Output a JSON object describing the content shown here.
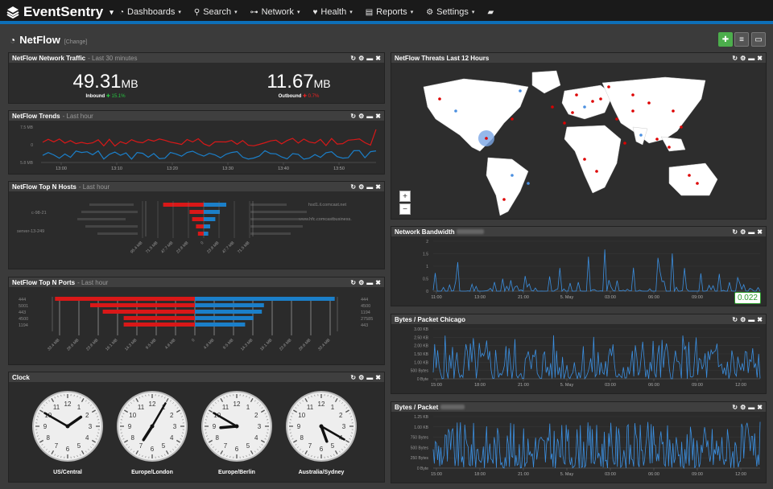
{
  "nav": {
    "brand": "EventSentry",
    "items": [
      {
        "label": "Dashboards",
        "icon": "dashboard-icon"
      },
      {
        "label": "Search",
        "icon": "search-icon"
      },
      {
        "label": "Network",
        "icon": "network-icon"
      },
      {
        "label": "Health",
        "icon": "heartbeat-icon"
      },
      {
        "label": "Reports",
        "icon": "reports-icon"
      },
      {
        "label": "Settings",
        "icon": "settings-icon"
      },
      {
        "label": "",
        "icon": "chat-icon"
      }
    ]
  },
  "page": {
    "title": "NetFlow",
    "change": "[Change]"
  },
  "colors": {
    "inbound": "#d91818",
    "outbound": "#1b7fc9",
    "accent": "#0d6fb8",
    "add": "#4cae4c"
  },
  "traffic": {
    "title": "NetFlow Network Traffic",
    "sub": "- Last 30 minutes",
    "in_value": "49.31",
    "in_unit": "MB",
    "in_label": "Inbound",
    "in_change": "15.1%",
    "out_value": "11.67",
    "out_unit": "MB",
    "out_label": "Outbound",
    "out_change": "0.7%"
  },
  "trends": {
    "title": "NetFlow Trends",
    "sub": "- Last hour",
    "ylabels": [
      "7.5 MB",
      "0",
      "5.8 MB"
    ],
    "xlabels": [
      "13:00",
      "13:10",
      "13:20",
      "13:30",
      "13:40",
      "13:50"
    ]
  },
  "hosts": {
    "title": "NetFlow Top N Hosts",
    "sub": "- Last hour",
    "left": [
      "c-98-21",
      "server-13-249"
    ],
    "right": [
      "hsd1.il.comcast.net",
      "www.hfc.comcastbusiness."
    ],
    "ticks": [
      "95.4 MB",
      "71.5 MB",
      "47.7 MB",
      "23.8 MB",
      "0",
      "23.8 MB",
      "47.7 MB",
      "71.5 MB"
    ],
    "in": [
      63,
      22,
      18,
      12,
      9
    ],
    "out": [
      35,
      25,
      18,
      10,
      7
    ]
  },
  "ports": {
    "title": "NetFlow Top N Ports",
    "sub": "- Last hour",
    "left": [
      "444",
      "5001",
      "443",
      "4500",
      "1194"
    ],
    "right": [
      "444",
      "4500",
      "1194",
      "27585",
      "443"
    ],
    "ticks": [
      "33.4 MB",
      "28.6 MB",
      "23.8 MB",
      "19.1 MB",
      "14.3 MB",
      "9.5 MB",
      "4.8 MB",
      "0",
      "4.8 MB",
      "9.5 MB",
      "14.3 MB",
      "19.1 MB",
      "23.8 MB",
      "28.6 MB",
      "33.4 MB"
    ],
    "in": [
      33.4,
      25,
      22,
      17,
      17
    ],
    "out": [
      33.4,
      16.5,
      16,
      14,
      12
    ]
  },
  "clock": {
    "title": "Clock",
    "clocks": [
      {
        "name": "US/Central",
        "hour": 1,
        "minute": 50
      },
      {
        "name": "Europe/London",
        "hour": 7,
        "minute": 5
      },
      {
        "name": "Europe/Berlin",
        "hour": 8,
        "minute": 50
      },
      {
        "name": "Australia/Sydney",
        "hour": 5,
        "minute": 20
      }
    ]
  },
  "threats": {
    "title": "NetFlow Threats Last 12 Hours",
    "zoom_in": "+",
    "zoom_out": "−"
  },
  "bandwidth": {
    "title": "Network Bandwidth",
    "ylabels": [
      "2",
      "1.5",
      "1",
      "0.5",
      "0"
    ],
    "xlabels": [
      "11:00",
      "13:00",
      "21:00",
      "5. May",
      "03:00",
      "06:00",
      "09:00",
      "12:00"
    ],
    "current": "0.022"
  },
  "bpp1": {
    "title": "Bytes / Packet Chicago",
    "ylabels": [
      "3.00 KB",
      "2.50 KB",
      "2.00 KB",
      "1.50 KB",
      "1.00 KB",
      "500 Bytes",
      "0 Byte"
    ],
    "xlabels": [
      "15:00",
      "18:00",
      "21:00",
      "5. May",
      "03:00",
      "06:00",
      "09:00",
      "12:00"
    ]
  },
  "bpp2": {
    "title": "Bytes / Packet",
    "ylabels": [
      "1.25 KB",
      "1.00 KB",
      "750 Bytes",
      "500 Bytes",
      "250 Bytes",
      "0 Byte"
    ],
    "xlabels": [
      "15:00",
      "18:00",
      "21:00",
      "5. May",
      "03:00",
      "06:00",
      "09:00",
      "12:00"
    ]
  }
}
